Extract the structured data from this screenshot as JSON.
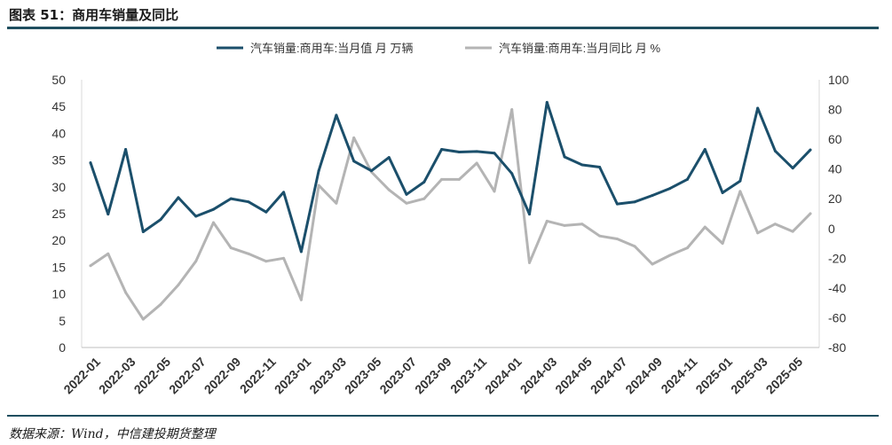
{
  "title": "图表 51：商用车销量及同比",
  "source": "数据来源：Wind，中信建投期货整理",
  "chart_data": {
    "type": "line",
    "x": [
      "2022-01",
      "2022-02",
      "2022-03",
      "2022-04",
      "2022-05",
      "2022-06",
      "2022-07",
      "2022-08",
      "2022-09",
      "2022-10",
      "2022-11",
      "2022-12",
      "2023-01",
      "2023-02",
      "2023-03",
      "2023-04",
      "2023-05",
      "2023-06",
      "2023-07",
      "2023-08",
      "2023-09",
      "2023-10",
      "2023-11",
      "2023-12",
      "2024-01",
      "2024-02",
      "2024-03",
      "2024-04",
      "2024-05",
      "2024-06",
      "2024-07",
      "2024-08",
      "2024-09",
      "2024-10",
      "2024-11",
      "2024-12",
      "2025-01",
      "2025-02",
      "2025-03",
      "2025-04",
      "2025-05",
      "2025-06"
    ],
    "x_tick_labels": [
      "2022-01",
      "2022-03",
      "2022-05",
      "2022-07",
      "2022-09",
      "2022-11",
      "2023-01",
      "2023-03",
      "2023-05",
      "2023-07",
      "2023-09",
      "2023-11",
      "2024-01",
      "2024-03",
      "2024-05",
      "2024-07",
      "2024-09",
      "2024-11",
      "2025-01",
      "2025-03",
      "2025-05"
    ],
    "series": [
      {
        "name": "汽车销量:商用车:当月值 月 万辆",
        "axis": "left",
        "color": "#1b4f6b",
        "values": [
          34.5,
          24.9,
          37.0,
          21.6,
          23.9,
          28.0,
          24.5,
          25.8,
          27.8,
          27.2,
          25.3,
          29.0,
          17.9,
          33.0,
          43.4,
          34.8,
          33.0,
          35.5,
          28.6,
          30.9,
          37.0,
          36.5,
          36.6,
          36.3,
          32.5,
          24.9,
          45.8,
          35.6,
          34.1,
          33.7,
          26.8,
          27.2,
          28.4,
          29.7,
          31.4,
          37.0,
          28.9,
          31.1,
          44.7,
          36.7,
          33.5,
          36.9
        ]
      },
      {
        "name": "汽车销量:商用车:当月同比 月 %",
        "axis": "right",
        "color": "#b4b4b4",
        "values": [
          -25,
          -17,
          -43,
          -61,
          -51,
          -38,
          -22,
          4,
          -13,
          -17,
          -22,
          -20,
          -48,
          29,
          17,
          61,
          38,
          26,
          17,
          20,
          33,
          33,
          44,
          25,
          80,
          -23,
          5,
          2,
          3,
          -5,
          -7,
          -12,
          -24,
          -18,
          -13,
          1,
          -10,
          25,
          -3,
          3,
          -2,
          10
        ]
      }
    ],
    "y_left": {
      "min": 0,
      "max": 50,
      "ticks": [
        0,
        5,
        10,
        15,
        20,
        25,
        30,
        35,
        40,
        45,
        50
      ]
    },
    "y_right": {
      "min": -80,
      "max": 100,
      "ticks": [
        -80,
        -60,
        -40,
        -20,
        0,
        20,
        40,
        60,
        80,
        100
      ]
    },
    "legend_position": "top",
    "grid": false
  }
}
